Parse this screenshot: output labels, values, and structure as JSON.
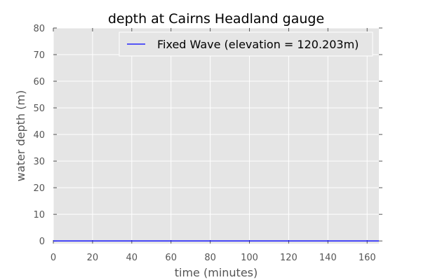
{
  "chart_data": {
    "type": "line",
    "title": "depth at Cairns Headland gauge",
    "xlabel": "time (minutes)",
    "ylabel": "water depth (m)",
    "xlim": [
      0,
      166
    ],
    "ylim": [
      -1,
      80
    ],
    "xticks": [
      0,
      20,
      40,
      60,
      80,
      100,
      120,
      140,
      160
    ],
    "yticks": [
      0,
      10,
      20,
      30,
      40,
      50,
      60,
      70,
      80
    ],
    "grid": true,
    "legend_position": "top-right",
    "background_color": "#e5e5e5",
    "series": [
      {
        "name": "Fixed Wave (elevation = 120.203m)",
        "color": "#0000ff",
        "x": [
          0,
          20,
          40,
          60,
          80,
          100,
          120,
          140,
          160,
          166
        ],
        "y": [
          0,
          0,
          0,
          0,
          0,
          0,
          0,
          0,
          0,
          0
        ]
      }
    ]
  }
}
